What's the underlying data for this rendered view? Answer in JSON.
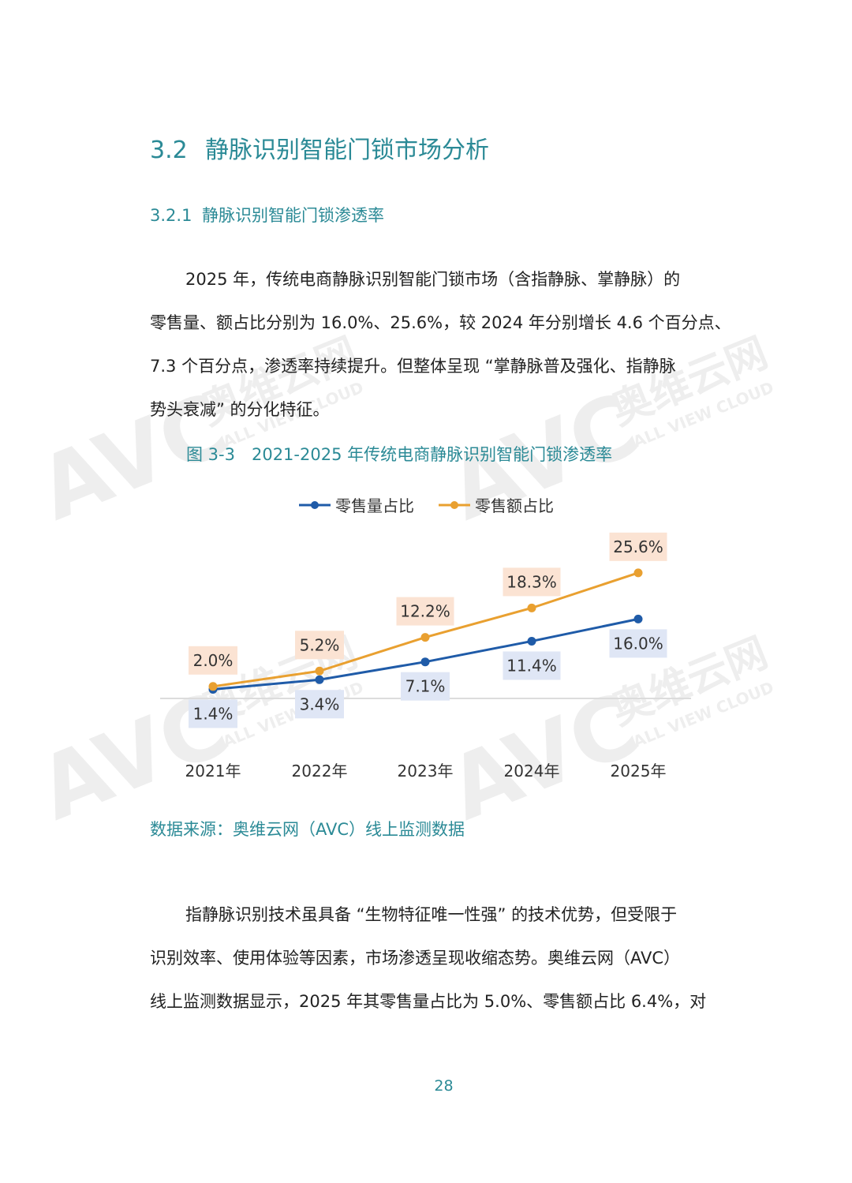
{
  "section": {
    "number": "3.2",
    "title": "静脉识别智能门锁市场分析"
  },
  "subsection": {
    "number": "3.2.1",
    "title": "静脉识别智能门锁渗透率"
  },
  "paragraph1": [
    "2025 年，传统电商静脉识别智能门锁市场（含指静脉、掌静脉）的",
    "零售量、额占比分别为 16.0%、25.6%，较 2024 年分别增长 4.6 个百分点、",
    "7.3 个百分点，渗透率持续提升。但整体呈现 “掌静脉普及强化、指静脉",
    "势头衰减” 的分化特征。"
  ],
  "figure_caption": "图 3-3　2021-2025 年传统电商静脉识别智能门锁渗透率",
  "chart_data": {
    "type": "line",
    "categories": [
      "2021年",
      "2022年",
      "2023年",
      "2024年",
      "2025年"
    ],
    "series": [
      {
        "name": "零售量占比",
        "color": "#1f5ba8",
        "label_bg": "#dfe6f5",
        "values": [
          1.4,
          3.4,
          7.1,
          11.4,
          16.0
        ],
        "labels": [
          "1.4%",
          "3.4%",
          "7.1%",
          "11.4%",
          "16.0%"
        ]
      },
      {
        "name": "零售额占比",
        "color": "#e9a030",
        "label_bg": "#fbe3d3",
        "values": [
          2.0,
          5.2,
          12.2,
          18.3,
          25.6
        ],
        "labels": [
          "2.0%",
          "5.2%",
          "12.2%",
          "18.3%",
          "25.6%"
        ]
      }
    ],
    "legend_position": "top",
    "grid": false,
    "ylim": [
      0,
      27
    ]
  },
  "source": "数据来源：奥维云网（AVC）线上监测数据",
  "paragraph2": [
    "指静脉识别技术虽具备 “生物特征唯一性强” 的技术优势，但受限于",
    "识别效率、使用体验等因素，市场渗透呈现收缩态势。奥维云网（AVC）",
    "线上监测数据显示，2025 年其零售量占比为 5.0%、零售额占比 6.4%，对"
  ],
  "page_number": "28",
  "watermark": {
    "logo": "AVC",
    "brand": "奥维云网",
    "sub": "ALL VIEW CLOUD"
  },
  "colors": {
    "heading": "#2b8a96",
    "text": "#222222"
  }
}
